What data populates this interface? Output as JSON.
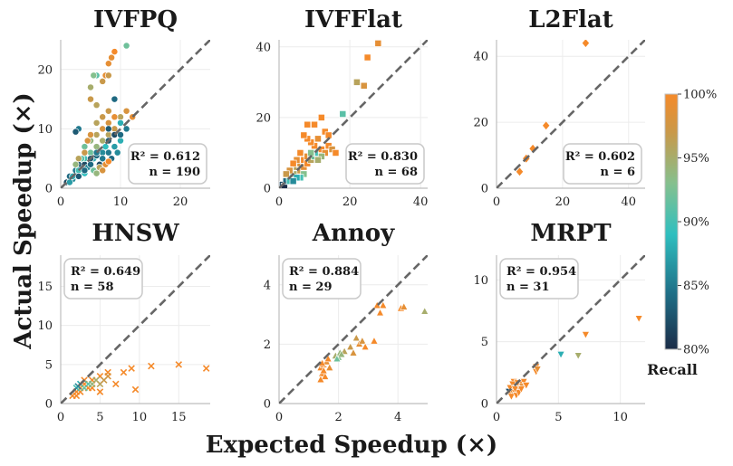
{
  "figure": {
    "xlabel": "Expected Speedup (×)",
    "ylabel": "Actual Speedup (×)"
  },
  "colorbar": {
    "title": "Recall",
    "min": 80,
    "max": 100,
    "ticks": [
      "100%",
      "95%",
      "90%",
      "85%",
      "80%"
    ],
    "tick_values": [
      100,
      95,
      90,
      85,
      80
    ],
    "colors": [
      "#1b2c47",
      "#1f6f87",
      "#2fbfbf",
      "#85c08e",
      "#c9994a",
      "#f58a2a"
    ]
  },
  "chart_data": [
    {
      "type": "scatter",
      "title": "IVFPQ",
      "marker": "circle",
      "xlim": [
        0,
        25
      ],
      "ylim": [
        0,
        25
      ],
      "xticks": [
        0,
        10,
        20
      ],
      "yticks": [
        0,
        10,
        20
      ],
      "stats": {
        "r2": "R² = 0.612",
        "n": "n = 190"
      },
      "stats_position": "bottom-right",
      "points": [
        [
          1,
          1,
          82
        ],
        [
          1.5,
          2,
          84
        ],
        [
          2,
          1.5,
          86
        ],
        [
          2.5,
          3,
          85
        ],
        [
          3,
          2.5,
          88
        ],
        [
          3,
          4,
          83
        ],
        [
          3.5,
          3,
          87
        ],
        [
          4,
          4,
          82
        ],
        [
          4,
          5,
          90
        ],
        [
          4.5,
          3.5,
          86
        ],
        [
          5,
          4,
          84
        ],
        [
          5,
          6,
          92
        ],
        [
          5.5,
          5,
          88
        ],
        [
          6,
          5.5,
          84
        ],
        [
          6,
          7,
          94
        ],
        [
          6.5,
          4,
          82
        ],
        [
          7,
          6,
          86
        ],
        [
          7,
          8,
          95
        ],
        [
          7.5,
          7,
          89
        ],
        [
          8,
          6,
          85
        ],
        [
          8,
          9,
          96
        ],
        [
          8.5,
          5,
          84
        ],
        [
          9,
          7,
          87
        ],
        [
          9,
          10,
          97
        ],
        [
          9.5,
          6,
          86
        ],
        [
          10,
          8,
          88
        ],
        [
          10,
          12,
          96
        ],
        [
          4,
          7,
          92
        ],
        [
          5,
          8,
          94
        ],
        [
          6,
          9,
          96
        ],
        [
          7,
          10,
          98
        ],
        [
          8,
          11,
          98
        ],
        [
          9,
          12,
          99
        ],
        [
          8,
          13,
          97
        ],
        [
          7,
          12,
          97
        ],
        [
          6,
          11,
          96
        ],
        [
          3,
          10,
          85
        ],
        [
          2.5,
          9.5,
          83
        ],
        [
          5,
          15,
          97
        ],
        [
          6,
          14,
          96
        ],
        [
          6,
          19,
          91
        ],
        [
          5.5,
          19,
          93
        ],
        [
          7,
          18,
          97
        ],
        [
          7.5,
          19,
          99
        ],
        [
          8,
          21,
          99
        ],
        [
          8.5,
          22,
          99
        ],
        [
          9,
          23,
          100
        ],
        [
          8,
          19,
          97
        ],
        [
          5,
          17,
          95
        ],
        [
          11,
          24,
          92
        ],
        [
          3,
          3,
          90
        ],
        [
          3.5,
          5,
          91
        ],
        [
          4,
          2.5,
          89
        ],
        [
          2,
          2,
          88
        ],
        [
          1.5,
          1,
          87
        ],
        [
          2.5,
          4,
          94
        ],
        [
          3,
          5,
          96
        ],
        [
          4,
          6,
          97
        ],
        [
          4.5,
          8,
          98
        ],
        [
          5,
          9,
          98
        ],
        [
          5.5,
          3,
          92
        ],
        [
          6,
          2.5,
          94
        ],
        [
          6.5,
          3.5,
          96
        ],
        [
          7,
          3,
          98
        ],
        [
          7.5,
          4,
          99
        ],
        [
          8,
          4.5,
          100
        ],
        [
          9,
          9,
          82
        ],
        [
          10,
          9,
          84
        ],
        [
          8,
          8,
          83
        ],
        [
          11,
          10,
          85
        ],
        [
          6,
          6,
          85
        ],
        [
          5,
          5,
          83
        ],
        [
          4,
          3,
          84
        ],
        [
          3,
          2,
          83
        ],
        [
          7,
          5,
          85
        ],
        [
          9,
          15,
          84
        ],
        [
          8,
          10,
          83
        ],
        [
          10,
          11,
          88
        ],
        [
          11,
          13,
          98
        ],
        [
          12,
          12,
          99
        ]
      ]
    },
    {
      "type": "scatter",
      "title": "IVFFlat",
      "marker": "square",
      "xlim": [
        0,
        42
      ],
      "ylim": [
        0,
        42
      ],
      "xticks": [
        0,
        20,
        40
      ],
      "yticks": [
        0,
        20,
        40
      ],
      "stats": {
        "r2": "R² = 0.830",
        "n": "n = 68"
      },
      "stats_position": "bottom-right",
      "points": [
        [
          1,
          1,
          82
        ],
        [
          1.5,
          0.5,
          80
        ],
        [
          2,
          2,
          84
        ],
        [
          3,
          3,
          86
        ],
        [
          3,
          2,
          90
        ],
        [
          4,
          4,
          92
        ],
        [
          4,
          5,
          94
        ],
        [
          5,
          4,
          95
        ],
        [
          5,
          6,
          96
        ],
        [
          6,
          5,
          97
        ],
        [
          6,
          7,
          98
        ],
        [
          7,
          6,
          99
        ],
        [
          7,
          8,
          100
        ],
        [
          8,
          7,
          100
        ],
        [
          8,
          9,
          99
        ],
        [
          9,
          8,
          96
        ],
        [
          10,
          9,
          92
        ],
        [
          11,
          10,
          90
        ],
        [
          12,
          11,
          100
        ],
        [
          13,
          10,
          99
        ],
        [
          14,
          12,
          100
        ],
        [
          15,
          11,
          98
        ],
        [
          16,
          10,
          100
        ],
        [
          10,
          12,
          100
        ],
        [
          9,
          13,
          100
        ],
        [
          8,
          14,
          100
        ],
        [
          7,
          15,
          100
        ],
        [
          8,
          18,
          100
        ],
        [
          10,
          18,
          100
        ],
        [
          12,
          20,
          100
        ],
        [
          13,
          16,
          100
        ],
        [
          14,
          15,
          100
        ],
        [
          11,
          14,
          99
        ],
        [
          18,
          21,
          91
        ],
        [
          6,
          10,
          100
        ],
        [
          5,
          8,
          99
        ],
        [
          4,
          7,
          100
        ],
        [
          3,
          5,
          98
        ],
        [
          2,
          4,
          97
        ],
        [
          9,
          10,
          93
        ],
        [
          12,
          9,
          94
        ],
        [
          11,
          8,
          95
        ],
        [
          7,
          4,
          93
        ],
        [
          6,
          3,
          90
        ],
        [
          5,
          3,
          88
        ],
        [
          4,
          2,
          86
        ],
        [
          22,
          30,
          96
        ],
        [
          25,
          37,
          100
        ],
        [
          28,
          41,
          99
        ],
        [
          24,
          29,
          98
        ]
      ]
    },
    {
      "type": "scatter",
      "title": "L2Flat",
      "marker": "diamond",
      "xlim": [
        0,
        45
      ],
      "ylim": [
        0,
        45
      ],
      "xticks": [
        0,
        20,
        40
      ],
      "yticks": [
        0,
        20,
        40
      ],
      "stats": {
        "r2": "R² = 0.602",
        "n": "n = 6"
      },
      "stats_position": "bottom-right",
      "points": [
        [
          7,
          5,
          100
        ],
        [
          9,
          9,
          100
        ],
        [
          11,
          12,
          100
        ],
        [
          15,
          19,
          100
        ],
        [
          24,
          12,
          100
        ],
        [
          27,
          44,
          100
        ]
      ]
    },
    {
      "type": "scatter",
      "title": "HNSW",
      "marker": "x",
      "xlim": [
        0,
        19
      ],
      "ylim": [
        0,
        19
      ],
      "xticks": [
        0,
        5,
        10,
        15
      ],
      "yticks": [
        0,
        5,
        10,
        15
      ],
      "stats": {
        "r2": "R² = 0.649",
        "n": "n = 58"
      },
      "stats_position": "top-left",
      "points": [
        [
          1.5,
          1,
          100
        ],
        [
          2,
          1.5,
          100
        ],
        [
          2.5,
          2,
          100
        ],
        [
          3,
          2.5,
          100
        ],
        [
          3.5,
          2,
          100
        ],
        [
          4,
          3,
          100
        ],
        [
          5,
          3.5,
          100
        ],
        [
          6,
          4,
          100
        ],
        [
          8,
          4,
          100
        ],
        [
          9,
          4.5,
          100
        ],
        [
          11.5,
          4.8,
          100
        ],
        [
          15,
          5,
          100
        ],
        [
          18.5,
          4.5,
          100
        ],
        [
          2,
          1,
          100
        ],
        [
          2.5,
          1.5,
          100
        ],
        [
          3,
          3,
          100
        ],
        [
          4,
          2,
          100
        ],
        [
          5,
          1.5,
          100
        ],
        [
          7,
          2.5,
          100
        ],
        [
          9.5,
          1.8,
          100
        ],
        [
          2,
          2,
          90
        ],
        [
          2.5,
          2.5,
          88
        ],
        [
          3,
          2,
          92
        ],
        [
          3.5,
          2.5,
          91
        ],
        [
          4,
          2.5,
          94
        ],
        [
          4.5,
          3,
          95
        ],
        [
          5,
          2.5,
          96
        ],
        [
          6,
          3.5,
          98
        ],
        [
          5.5,
          3,
          97
        ],
        [
          2.2,
          2.2,
          86
        ]
      ]
    },
    {
      "type": "scatter",
      "title": "Annoy",
      "marker": "triangle",
      "xlim": [
        0,
        5
      ],
      "ylim": [
        0,
        5
      ],
      "xticks": [
        0,
        2,
        4
      ],
      "yticks": [
        0,
        2,
        4
      ],
      "stats": {
        "r2": "R² = 0.884",
        "n": "n = 29"
      },
      "stats_position": "top-left",
      "points": [
        [
          1.4,
          1.2,
          100
        ],
        [
          1.45,
          1.0,
          100
        ],
        [
          1.5,
          1.3,
          100
        ],
        [
          1.55,
          0.9,
          100
        ],
        [
          1.6,
          1.4,
          99
        ],
        [
          1.5,
          1.1,
          100
        ],
        [
          1.4,
          0.8,
          100
        ],
        [
          1.65,
          1.5,
          100
        ],
        [
          1.7,
          1.2,
          99
        ],
        [
          1.45,
          1.35,
          100
        ],
        [
          1.9,
          1.6,
          95
        ],
        [
          2.0,
          1.55,
          93
        ],
        [
          2.05,
          1.7,
          94
        ],
        [
          2.2,
          1.75,
          96
        ],
        [
          2.4,
          1.9,
          97
        ],
        [
          2.5,
          1.7,
          98
        ],
        [
          2.7,
          2.0,
          99
        ],
        [
          2.8,
          2.1,
          98
        ],
        [
          2.9,
          1.9,
          100
        ],
        [
          3.2,
          2.1,
          100
        ],
        [
          3.4,
          3.05,
          100
        ],
        [
          3.5,
          3.3,
          100
        ],
        [
          4.1,
          3.2,
          100
        ],
        [
          4.2,
          3.25,
          99
        ],
        [
          4.9,
          3.1,
          95
        ],
        [
          1.95,
          1.5,
          92
        ],
        [
          2.1,
          1.65,
          94
        ],
        [
          2.6,
          2.2,
          97
        ],
        [
          3.3,
          3.3,
          100
        ]
      ]
    },
    {
      "type": "scatter",
      "title": "MRPT",
      "marker": "triangle-down",
      "xlim": [
        0,
        12
      ],
      "ylim": [
        0,
        12
      ],
      "xticks": [
        0,
        5,
        10
      ],
      "yticks": [
        0,
        5,
        10
      ],
      "stats": {
        "r2": "R² = 0.954",
        "n": "n = 31"
      },
      "stats_position": "top-left",
      "points": [
        [
          1.0,
          1.0,
          82
        ],
        [
          1.1,
          0.8,
          100
        ],
        [
          1.2,
          1.2,
          100
        ],
        [
          1.3,
          1.0,
          99
        ],
        [
          1.4,
          1.4,
          100
        ],
        [
          1.5,
          0.9,
          100
        ],
        [
          1.5,
          1.6,
          100
        ],
        [
          1.6,
          1.3,
          97
        ],
        [
          1.7,
          1.1,
          100
        ],
        [
          1.8,
          1.5,
          100
        ],
        [
          1.9,
          1.2,
          100
        ],
        [
          2.0,
          1.7,
          100
        ],
        [
          2.1,
          1.4,
          99
        ],
        [
          1.2,
          0.6,
          100
        ],
        [
          1.4,
          1.8,
          100
        ],
        [
          3.2,
          2.6,
          100
        ],
        [
          3.2,
          3.0,
          100
        ],
        [
          3.3,
          2.8,
          99
        ],
        [
          5.2,
          4.0,
          88
        ],
        [
          6.6,
          3.9,
          95
        ],
        [
          7.2,
          5.6,
          100
        ],
        [
          11.5,
          6.9,
          100
        ],
        [
          1.3,
          1.6,
          100
        ],
        [
          1.6,
          0.7,
          100
        ],
        [
          2.2,
          1.8,
          100
        ],
        [
          2.4,
          1.5,
          100
        ],
        [
          1.1,
          1.3,
          100
        ],
        [
          1.8,
          0.9,
          100
        ],
        [
          2.0,
          1.2,
          100
        ],
        [
          1.5,
          1.2,
          100
        ],
        [
          1.7,
          1.7,
          100
        ]
      ]
    }
  ]
}
